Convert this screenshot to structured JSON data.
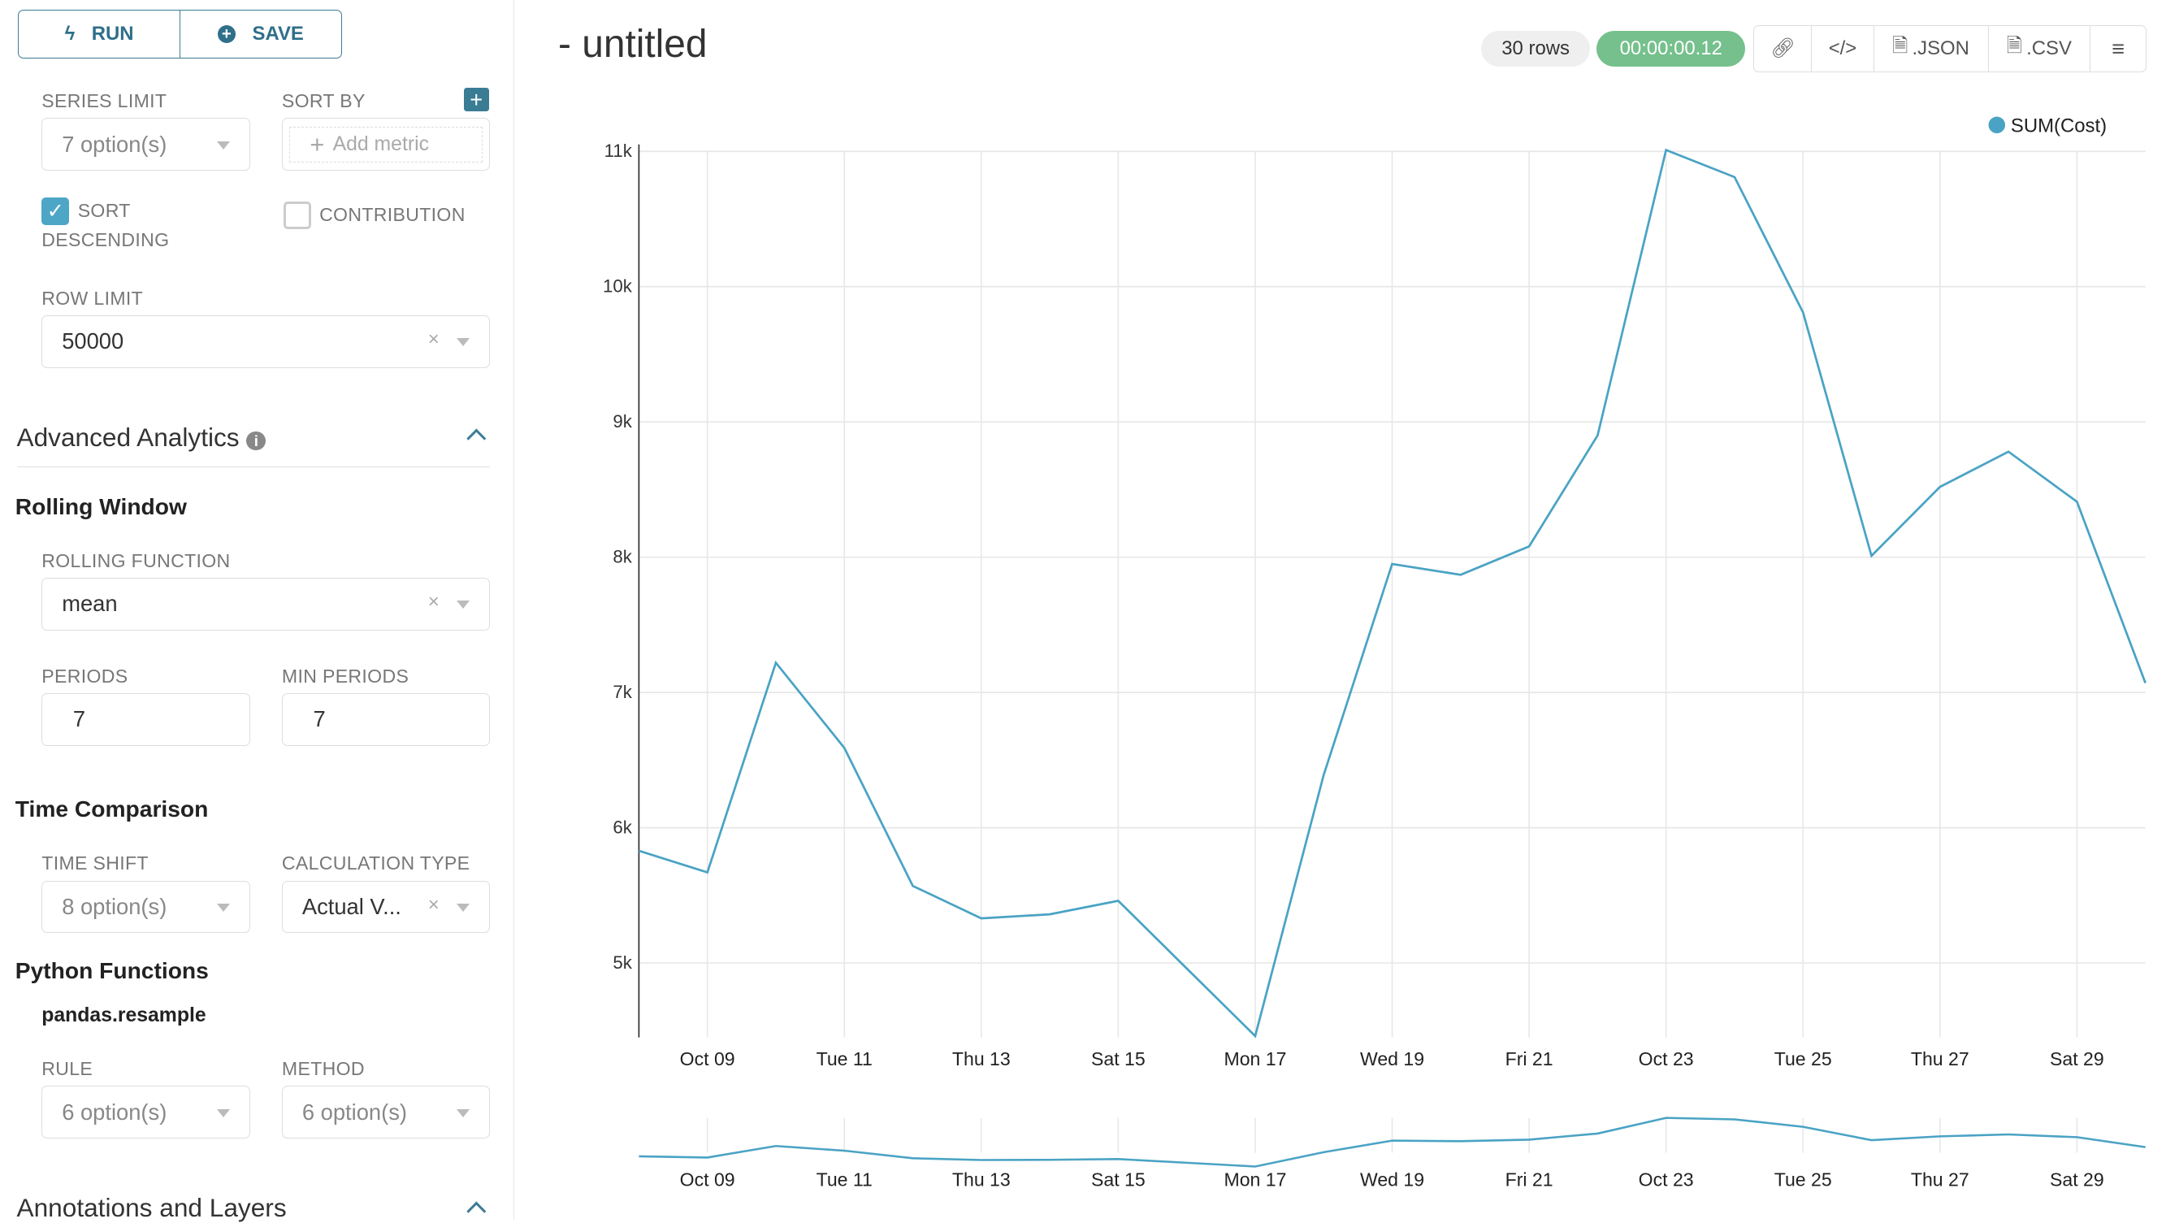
{
  "toolbar": {
    "run": "RUN",
    "save": "SAVE"
  },
  "controls": {
    "series_limit": {
      "label": "SERIES LIMIT",
      "value": "7 option(s)"
    },
    "sort_by": {
      "label": "SORT BY",
      "placeholder": "Add metric"
    },
    "sort_descending": {
      "label_1": "SORT",
      "label_2": "DESCENDING",
      "checked": true
    },
    "contribution": {
      "label": "CONTRIBUTION",
      "checked": false
    },
    "row_limit": {
      "label": "ROW LIMIT",
      "value": "50000"
    }
  },
  "advanced": {
    "title": "Advanced Analytics",
    "rolling_window": "Rolling Window",
    "rolling_function": {
      "label": "ROLLING FUNCTION",
      "value": "mean"
    },
    "periods": {
      "label": "PERIODS",
      "value": "7"
    },
    "min_periods": {
      "label": "MIN PERIODS",
      "value": "7"
    },
    "time_comparison": "Time Comparison",
    "time_shift": {
      "label": "TIME SHIFT",
      "value": "8 option(s)"
    },
    "calculation_type": {
      "label": "CALCULATION TYPE",
      "value": "Actual V..."
    },
    "python_functions": "Python Functions",
    "resample": "pandas.resample",
    "rule": {
      "label": "RULE",
      "value": "6 option(s)"
    },
    "method": {
      "label": "METHOD",
      "value": "6 option(s)"
    }
  },
  "annotations": {
    "title": "Annotations and Layers"
  },
  "header": {
    "title": "- untitled",
    "rows": "30 rows",
    "timer": "00:00:00.12",
    "json": ".JSON",
    "csv": ".CSV"
  },
  "colors": {
    "accent": "#3b7c95",
    "series": "#4aa3c4",
    "timer": "#75c08c",
    "checkbox": "#4ea6c6"
  },
  "chart_data": {
    "type": "line",
    "legend": "top-right",
    "series": [
      {
        "name": "SUM(Cost)",
        "x": [
          "Oct 08",
          "Oct 09",
          "Oct 10",
          "Oct 11",
          "Oct 12",
          "Oct 13",
          "Oct 14",
          "Oct 15",
          "Oct 16",
          "Oct 17",
          "Oct 18",
          "Oct 19",
          "Oct 20",
          "Oct 21",
          "Oct 22",
          "Oct 23",
          "Oct 24",
          "Oct 25",
          "Oct 26",
          "Oct 27",
          "Oct 28",
          "Oct 29",
          "Oct 30"
        ],
        "values": [
          5830,
          5670,
          7220,
          6590,
          5570,
          5330,
          5360,
          5460,
          4960,
          4460,
          6390,
          7950,
          7870,
          8080,
          8900,
          11010,
          10810,
          9810,
          8010,
          8520,
          8780,
          8410,
          7070
        ]
      }
    ],
    "x_tick_labels": [
      "Oct 09",
      "Tue 11",
      "Thu 13",
      "Sat 15",
      "Mon 17",
      "Wed 19",
      "Fri 21",
      "Oct 23",
      "Tue 25",
      "Thu 27",
      "Sat 29"
    ],
    "y_tick_labels": [
      "5k",
      "6k",
      "7k",
      "8k",
      "9k",
      "10k",
      "11k"
    ],
    "y_ticks": [
      5000,
      6000,
      7000,
      8000,
      9000,
      10000,
      11000
    ],
    "ylim": [
      4450,
      11000
    ],
    "grid": true,
    "brush": true
  }
}
